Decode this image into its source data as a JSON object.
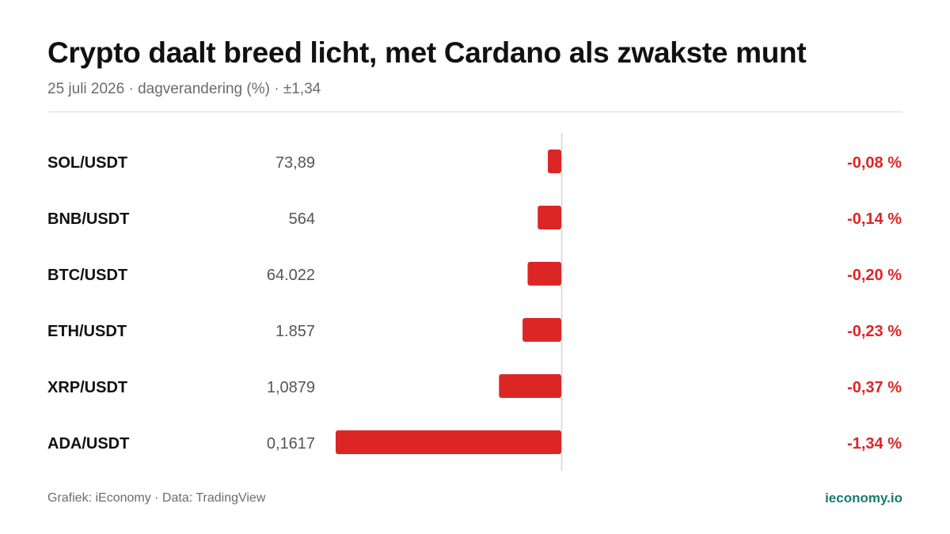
{
  "header": {
    "title": "Crypto daalt breed licht, met Cardano als zwakste munt",
    "subtitle": "25 juli 2026 · dagverandering (%) · ±1,34"
  },
  "footer": {
    "source": "Grafiek: iEconomy · Data: TradingView",
    "brand": "ieconomy.io"
  },
  "colors": {
    "negative": "#dc2626",
    "label": "#111111",
    "price": "#555555",
    "axis": "#d4d4d4"
  },
  "chart_data": {
    "type": "bar",
    "orientation": "horizontal",
    "xlim": [
      -1.34,
      1.34
    ],
    "grid": false,
    "categories": [
      "SOL/USDT",
      "BNB/USDT",
      "BTC/USDT",
      "ETH/USDT",
      "XRP/USDT",
      "ADA/USDT"
    ],
    "prices": [
      "73,89",
      "564",
      "64.022",
      "1.857",
      "1,0879",
      "0,1617"
    ],
    "values": [
      -0.08,
      -0.14,
      -0.2,
      -0.23,
      -0.37,
      -1.34
    ],
    "value_labels": [
      "-0,08 %",
      "-0,14 %",
      "-0,20 %",
      "-0,23 %",
      "-0,37 %",
      "-1,34 %"
    ]
  }
}
